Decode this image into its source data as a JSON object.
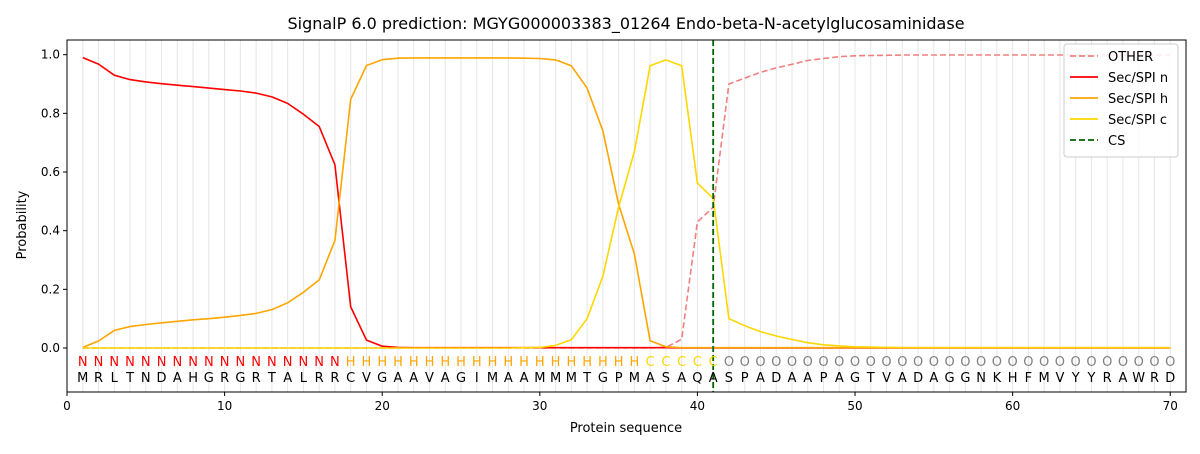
{
  "chart_data": {
    "type": "line",
    "title": "SignalP 6.0 prediction: MGYG000003383_01264 Endo-beta-N-acetylglucosaminidase",
    "xlabel": "Protein sequence",
    "ylabel": "Probability",
    "xlim": [
      0,
      71
    ],
    "ylim": [
      -0.15,
      1.05
    ],
    "xticks": [
      0,
      10,
      20,
      30,
      40,
      50,
      60,
      70
    ],
    "yticks": [
      0.0,
      0.2,
      0.4,
      0.6,
      0.8,
      1.0
    ],
    "grid": "vertical lines at each residue",
    "legend_position": "top-right",
    "cleavage_site": 41,
    "sequence": [
      "M",
      "R",
      "L",
      "T",
      "N",
      "D",
      "A",
      "H",
      "G",
      "R",
      "G",
      "R",
      "T",
      "A",
      "L",
      "R",
      "R",
      "C",
      "V",
      "G",
      "A",
      "A",
      "V",
      "A",
      "G",
      "I",
      "M",
      "A",
      "A",
      "M",
      "M",
      "M",
      "T",
      "G",
      "P",
      "M",
      "A",
      "S",
      "A",
      "Q",
      "A",
      "S",
      "P",
      "A",
      "D",
      "A",
      "A",
      "P",
      "A",
      "G",
      "T",
      "V",
      "A",
      "D",
      "A",
      "G",
      "G",
      "N",
      "K",
      "H",
      "F",
      "M",
      "V",
      "Y",
      "Y",
      "R",
      "A",
      "W",
      "R",
      "D"
    ],
    "labels": [
      "N",
      "N",
      "N",
      "N",
      "N",
      "N",
      "N",
      "N",
      "N",
      "N",
      "N",
      "N",
      "N",
      "N",
      "N",
      "N",
      "N",
      "H",
      "H",
      "H",
      "H",
      "H",
      "H",
      "H",
      "H",
      "H",
      "H",
      "H",
      "H",
      "H",
      "H",
      "H",
      "H",
      "H",
      "H",
      "H",
      "C",
      "C",
      "C",
      "C",
      "C",
      "O",
      "O",
      "O",
      "O",
      "O",
      "O",
      "O",
      "O",
      "O",
      "O",
      "O",
      "O",
      "O",
      "O",
      "O",
      "O",
      "O",
      "O",
      "O",
      "O",
      "O",
      "O",
      "O",
      "O",
      "O",
      "O",
      "O",
      "O",
      "O"
    ],
    "label_colors": {
      "N": "#ff0000",
      "H": "#ffa500",
      "C": "#ffd700",
      "O": "#808080"
    },
    "x": [
      1,
      2,
      3,
      4,
      5,
      6,
      7,
      8,
      9,
      10,
      11,
      12,
      13,
      14,
      15,
      16,
      17,
      18,
      19,
      20,
      21,
      22,
      23,
      24,
      25,
      26,
      27,
      28,
      29,
      30,
      31,
      32,
      33,
      34,
      35,
      36,
      37,
      38,
      39,
      40,
      41,
      42,
      43,
      44,
      45,
      46,
      47,
      48,
      49,
      50,
      51,
      52,
      53,
      54,
      55,
      56,
      57,
      58,
      59,
      60,
      61,
      62,
      63,
      64,
      65,
      66,
      67,
      68,
      69,
      70
    ],
    "series": [
      {
        "name": "OTHER",
        "color": "#f08080",
        "dash": true,
        "values": [
          0,
          0,
          0,
          0,
          0,
          0,
          0,
          0,
          0,
          0,
          0,
          0,
          0,
          0,
          0,
          0,
          0,
          0,
          0,
          0,
          0,
          0,
          0,
          0,
          0,
          0,
          0,
          0,
          0,
          0,
          0,
          0,
          0,
          0,
          0,
          0,
          0,
          0.002,
          0.03,
          0.43,
          0.48,
          0.9,
          0.92,
          0.94,
          0.955,
          0.967,
          0.98,
          0.987,
          0.993,
          0.996,
          0.997,
          0.998,
          0.999,
          0.999,
          0.999,
          0.999,
          0.999,
          0.999,
          0.999,
          0.999,
          0.999,
          0.999,
          0.999,
          0.999,
          0.999,
          0.999,
          0.999,
          0.999,
          0.999,
          0.999
        ]
      },
      {
        "name": "Sec/SPI n",
        "color": "#ff0000",
        "dash": false,
        "values": [
          0.99,
          0.968,
          0.93,
          0.915,
          0.907,
          0.901,
          0.896,
          0.891,
          0.886,
          0.881,
          0.876,
          0.869,
          0.856,
          0.834,
          0.797,
          0.755,
          0.625,
          0.14,
          0.027,
          0.006,
          0.002,
          0.001,
          0.001,
          0.001,
          0.001,
          0.001,
          0.001,
          0.001,
          0.001,
          0.001,
          0.001,
          0.001,
          0.001,
          0.001,
          0.001,
          0.001,
          0.001,
          0.001,
          0,
          0,
          0,
          0,
          0,
          0,
          0,
          0,
          0,
          0,
          0,
          0,
          0,
          0,
          0,
          0,
          0,
          0,
          0,
          0,
          0,
          0,
          0,
          0,
          0,
          0,
          0,
          0,
          0,
          0,
          0,
          0
        ]
      },
      {
        "name": "Sec/SPI h",
        "color": "#ffa500",
        "dash": false,
        "values": [
          0.002,
          0.024,
          0.06,
          0.073,
          0.08,
          0.086,
          0.091,
          0.096,
          0.1,
          0.105,
          0.111,
          0.118,
          0.131,
          0.154,
          0.19,
          0.232,
          0.366,
          0.848,
          0.963,
          0.983,
          0.988,
          0.989,
          0.989,
          0.989,
          0.989,
          0.989,
          0.989,
          0.989,
          0.988,
          0.987,
          0.982,
          0.962,
          0.886,
          0.74,
          0.49,
          0.32,
          0.025,
          0.004,
          0.001,
          0.001,
          0.001,
          0.001,
          0.001,
          0.001,
          0.001,
          0.001,
          0.001,
          0.001,
          0.001,
          0.001,
          0.001,
          0.001,
          0.001,
          0.001,
          0.001,
          0.001,
          0.001,
          0.001,
          0.001,
          0.001,
          0.001,
          0.001,
          0.001,
          0.001,
          0.001,
          0.001,
          0.001,
          0.001,
          0.001,
          0.001
        ]
      },
      {
        "name": "Sec/SPI c",
        "color": "#ffd700",
        "dash": false,
        "values": [
          0,
          0,
          0,
          0,
          0,
          0,
          0,
          0,
          0,
          0,
          0,
          0,
          0,
          0,
          0,
          0,
          0,
          0,
          0,
          0,
          0,
          0,
          0,
          0,
          0,
          0,
          0,
          0,
          0.001,
          0.002,
          0.009,
          0.028,
          0.1,
          0.245,
          0.48,
          0.67,
          0.962,
          0.982,
          0.962,
          0.562,
          0.51,
          0.1,
          0.076,
          0.056,
          0.041,
          0.029,
          0.018,
          0.011,
          0.007,
          0.004,
          0.003,
          0.002,
          0.001,
          0.001,
          0.001,
          0.001,
          0.001,
          0.001,
          0.001,
          0.001,
          0.001,
          0.001,
          0.001,
          0.001,
          0.001,
          0.001,
          0.001,
          0.001,
          0.001,
          0.001
        ]
      }
    ],
    "legend": [
      {
        "name": "OTHER",
        "color": "#f08080",
        "dash": true
      },
      {
        "name": "Sec/SPI n",
        "color": "#ff0000",
        "dash": false
      },
      {
        "name": "Sec/SPI h",
        "color": "#ffa500",
        "dash": false
      },
      {
        "name": "Sec/SPI c",
        "color": "#ffd700",
        "dash": false
      },
      {
        "name": "CS",
        "color": "#006400",
        "dash": true
      }
    ]
  }
}
